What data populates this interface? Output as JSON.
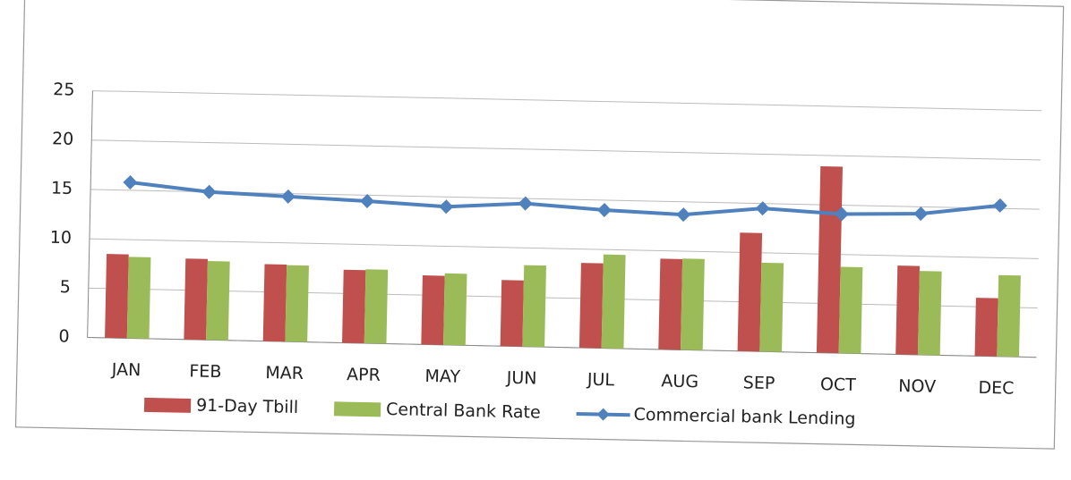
{
  "chart_data": {
    "type": "bar-line",
    "categories": [
      "JAN",
      "FEB",
      "MAR",
      "APR",
      "MAY",
      "JUN",
      "JUL",
      "AUG",
      "SEP",
      "OCT",
      "NOV",
      "DEC"
    ],
    "series": [
      {
        "name": "91-Day Tbill",
        "type": "bar",
        "color": "#c0504d",
        "values": [
          8.5,
          8.2,
          7.8,
          7.4,
          7.0,
          6.7,
          8.6,
          9.2,
          12.0,
          18.9,
          9.0,
          5.9
        ]
      },
      {
        "name": "Central Bank Rate",
        "type": "bar",
        "color": "#9bbb59",
        "values": [
          8.25,
          8.0,
          7.75,
          7.5,
          7.25,
          8.25,
          9.5,
          9.25,
          9.0,
          8.75,
          8.5,
          8.25
        ]
      },
      {
        "name": "Commercial bank Lending",
        "type": "line",
        "color": "#4f81bd",
        "values": [
          15.8,
          15.0,
          14.7,
          14.4,
          14.0,
          14.5,
          14.0,
          13.7,
          14.5,
          14.1,
          14.3,
          15.3
        ]
      }
    ],
    "ylim": [
      0,
      25
    ],
    "yticks": [
      0,
      5,
      10,
      15,
      20,
      25
    ],
    "grid": true,
    "legend": "bottom"
  }
}
